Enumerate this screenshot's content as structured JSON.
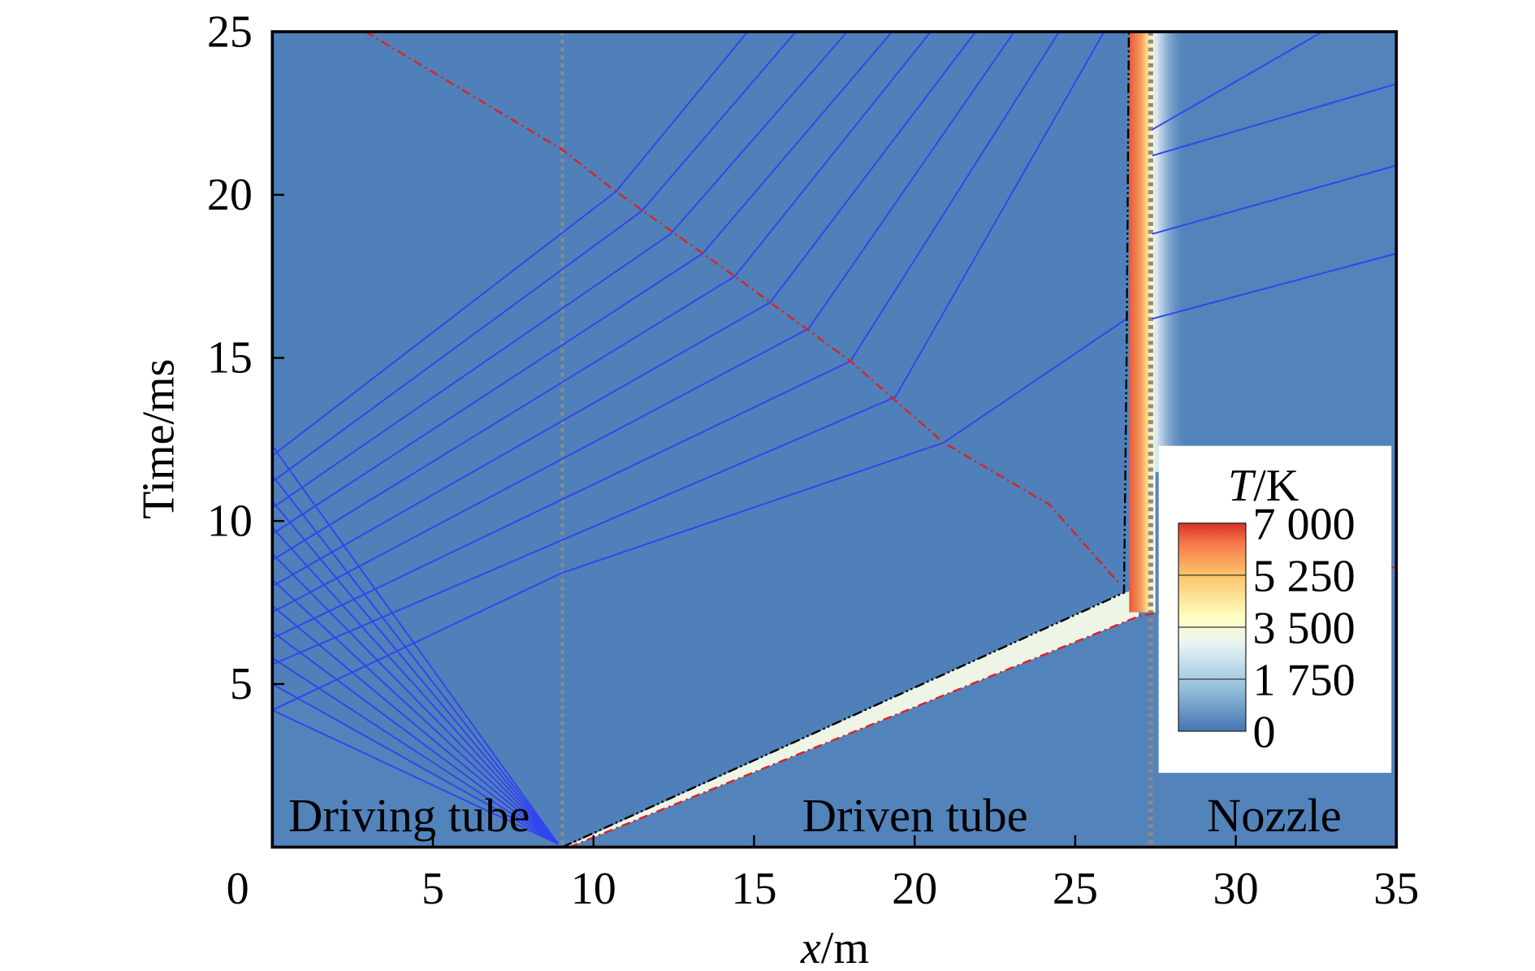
{
  "chart_data": {
    "type": "contour-xt-diagram",
    "xlabel": {
      "italic": "x",
      "rest": "/m"
    },
    "ylabel": "Time/ms",
    "xlim": [
      0,
      35
    ],
    "ylim": [
      0,
      25
    ],
    "xticks": [
      "0",
      "5",
      "10",
      "15",
      "20",
      "25",
      "30",
      "35"
    ],
    "xtick_values": [
      0,
      5,
      10,
      15,
      20,
      25,
      30,
      35
    ],
    "yticks": [
      "5",
      "10",
      "15",
      "20",
      "25"
    ],
    "ytick_values": [
      5,
      10,
      15,
      20,
      25
    ],
    "region_labels": [
      {
        "text": "Driving tube",
        "x": 0.5,
        "t": 0.3
      },
      {
        "text": "Driven tube",
        "x": 16.5,
        "t": 0.3
      },
      {
        "text": "Nozzle",
        "x": 29.1,
        "t": 0.3
      }
    ],
    "section_boundaries_x": [
      9.03,
      27.35
    ],
    "colorbar": {
      "title_italic": "T",
      "title_rest": "/K",
      "labels": [
        "7 000",
        "5 250",
        "3 500",
        "1 750",
        "0"
      ],
      "values": [
        7000,
        5250,
        3500,
        1750,
        0
      ],
      "colors": [
        "#d73027",
        "#fc8d59",
        "#fee090",
        "#e0f3f8",
        "#91bfdb",
        "#4575b4"
      ]
    },
    "background_color": "#5283bb",
    "reflected_shock": [
      [
        2.9,
        25
      ],
      [
        9.0,
        21.4
      ],
      [
        10.7,
        20.1
      ],
      [
        14.4,
        17.5
      ],
      [
        18.0,
        14.9
      ],
      [
        20.9,
        12.4
      ],
      [
        24.2,
        10.5
      ],
      [
        26.4,
        8.05
      ]
    ],
    "incident_shock": [
      [
        9.25,
        0
      ],
      [
        26.98,
        7.08
      ],
      [
        35,
        8.6
      ]
    ],
    "contact_surface": [
      [
        9.03,
        0
      ],
      [
        26.52,
        7.8
      ],
      [
        26.6,
        15
      ],
      [
        26.67,
        25
      ]
    ],
    "expansion_fan": {
      "origin": [
        8.9,
        0.1
      ],
      "wall_times": [
        4.2,
        5.0,
        5.8,
        6.6,
        7.4,
        8.2,
        9.0,
        9.8,
        10.6,
        11.4,
        12.3
      ]
    },
    "reflected_characteristics": [
      [
        [
          0,
          12.0
        ],
        [
          10.7,
          20.1
        ],
        [
          14.8,
          25
        ]
      ],
      [
        [
          0,
          11.2
        ],
        [
          11.5,
          19.5
        ],
        [
          16.3,
          25
        ]
      ],
      [
        [
          0,
          10.4
        ],
        [
          12.4,
          18.8
        ],
        [
          17.9,
          25
        ]
      ],
      [
        [
          0,
          9.6
        ],
        [
          13.4,
          18.2
        ],
        [
          19.3,
          25
        ]
      ],
      [
        [
          0,
          8.8
        ],
        [
          14.4,
          17.5
        ],
        [
          20.5,
          25
        ]
      ],
      [
        [
          0,
          8.0
        ],
        [
          15.5,
          16.7
        ],
        [
          21.9,
          25
        ]
      ],
      [
        [
          0,
          7.2
        ],
        [
          16.7,
          15.9
        ],
        [
          23.1,
          25
        ]
      ],
      [
        [
          0,
          6.4
        ],
        [
          18.0,
          14.9
        ],
        [
          24.5,
          25
        ]
      ],
      [
        [
          0,
          5.6
        ],
        [
          19.4,
          13.8
        ],
        [
          25.9,
          25
        ]
      ],
      [
        [
          0,
          4.2
        ],
        [
          9.0,
          8.4
        ],
        [
          20.9,
          12.4
        ],
        [
          26.6,
          16.2
        ]
      ]
    ],
    "nozzle_characteristics": [
      [
        [
          27.4,
          22.0
        ],
        [
          32.7,
          25
        ]
      ],
      [
        [
          27.4,
          21.2
        ],
        [
          35,
          23.4
        ]
      ],
      [
        [
          27.4,
          18.8
        ],
        [
          35,
          20.9
        ]
      ],
      [
        [
          27.4,
          16.2
        ],
        [
          35,
          18.2
        ]
      ]
    ]
  }
}
